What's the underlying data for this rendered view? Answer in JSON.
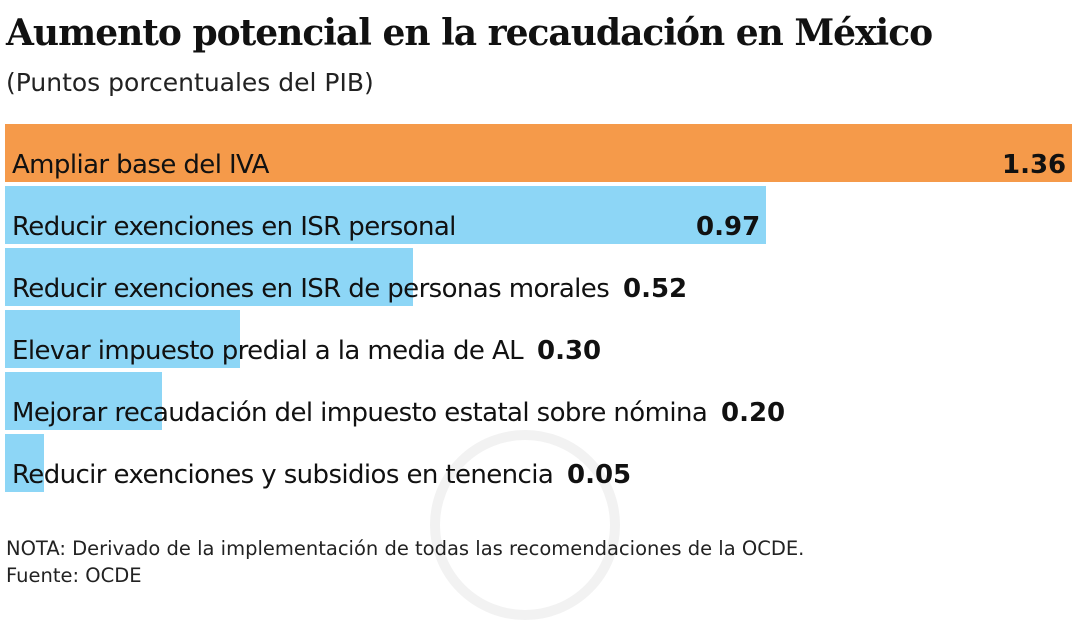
{
  "chart_data": {
    "type": "bar",
    "orientation": "horizontal",
    "title": "Aumento potencial en la recaudación en México",
    "subtitle": "(Puntos porcentuales del PIB)",
    "categories": [
      "Ampliar base del IVA",
      "Reducir exenciones en ISR personal",
      "Reducir exenciones en ISR de personas morales",
      "Elevar impuesto predial a la media de AL",
      "Mejorar recaudación del impuesto estatal sobre nómina",
      "Reducir exenciones y subsidios en tenencia"
    ],
    "values": [
      1.36,
      0.97,
      0.52,
      0.3,
      0.2,
      0.05
    ],
    "value_labels": [
      "1.36",
      "0.97",
      "0.52",
      "0.30",
      "0.20",
      "0.05"
    ],
    "colors": [
      "#F59A4A",
      "#8DD6F6",
      "#8DD6F6",
      "#8DD6F6",
      "#8DD6F6",
      "#8DD6F6"
    ],
    "xlim": [
      0,
      1.36
    ]
  },
  "note": "NOTA: Derivado de la implementación de todas las recomendaciones de la OCDE.",
  "source": "Fuente: OCDE"
}
